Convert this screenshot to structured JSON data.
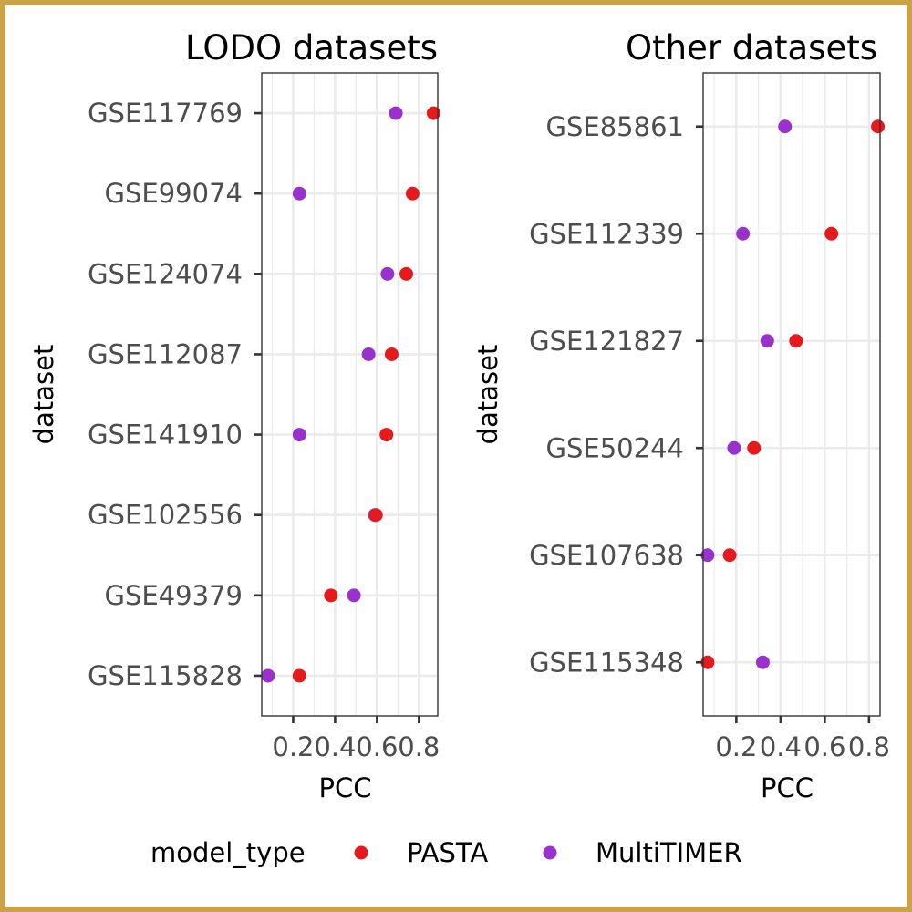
{
  "chart_data": [
    {
      "type": "scatter",
      "title": "LODO datasets",
      "xlabel": "PCC",
      "ylabel": "dataset",
      "xlim": [
        0.05,
        0.89
      ],
      "xticks": [
        "0.2",
        "0.4",
        "0.6",
        "0.8"
      ],
      "grid": true,
      "categories": [
        "GSE117769",
        "GSE99074",
        "GSE124074",
        "GSE112087",
        "GSE141910",
        "GSE102556",
        "GSE49379",
        "GSE115828"
      ],
      "series": [
        {
          "name": "PASTA",
          "color": "#e41a1c",
          "values": [
            0.87,
            0.77,
            0.74,
            0.67,
            0.645,
            0.595,
            0.38,
            0.23
          ]
        },
        {
          "name": "MultiTIMER",
          "color": "#9932cc",
          "values": [
            0.69,
            0.23,
            0.65,
            0.56,
            0.23,
            0.59,
            0.49,
            0.08
          ]
        }
      ]
    },
    {
      "type": "scatter",
      "title": "Other datasets",
      "xlabel": "PCC",
      "ylabel": "dataset",
      "xlim": [
        0.05,
        0.85
      ],
      "xticks": [
        "0.2",
        "0.4",
        "0.6",
        "0.8"
      ],
      "grid": true,
      "categories": [
        "GSE85861",
        "GSE112339",
        "GSE121827",
        "GSE50244",
        "GSE107638",
        "GSE115348"
      ],
      "series": [
        {
          "name": "PASTA",
          "color": "#e41a1c",
          "values": [
            0.84,
            0.63,
            0.47,
            0.28,
            0.17,
            0.07
          ]
        },
        {
          "name": "MultiTIMER",
          "color": "#9932cc",
          "values": [
            0.42,
            0.23,
            0.34,
            0.19,
            0.07,
            0.32
          ]
        }
      ]
    }
  ],
  "legend": {
    "title": "model_type",
    "position": "bottom",
    "items": [
      {
        "label": "PASTA",
        "color": "#e41a1c"
      },
      {
        "label": "MultiTIMER",
        "color": "#9932cc"
      }
    ]
  }
}
